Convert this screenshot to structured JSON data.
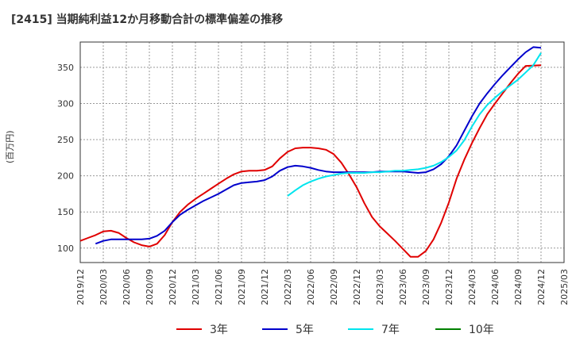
{
  "page_title": "[2415]  当期純利益12か月移動合計の標準偏差の推移",
  "y_axis_label": "(百万円)",
  "chart_data": {
    "type": "line",
    "title": "[2415]  当期純利益12か月移動合計の標準偏差の推移",
    "xlabel": "",
    "ylabel": "(百万円)",
    "x_ticks": [
      "2019/12",
      "2020/03",
      "2020/06",
      "2020/09",
      "2020/12",
      "2021/03",
      "2021/06",
      "2021/09",
      "2021/12",
      "2022/03",
      "2022/06",
      "2022/09",
      "2022/12",
      "2023/03",
      "2023/06",
      "2023/09",
      "2023/12",
      "2024/03",
      "2024/06",
      "2024/09",
      "2024/12",
      "2025/03"
    ],
    "y_ticks": [
      100,
      150,
      200,
      250,
      300,
      350
    ],
    "ylim": [
      80,
      385
    ],
    "grid": true,
    "legend_position": "bottom",
    "series": [
      {
        "name": "3年",
        "color": "#e00000",
        "x": [
          "2019/12",
          "2020/01",
          "2020/02",
          "2020/03",
          "2020/04",
          "2020/05",
          "2020/06",
          "2020/07",
          "2020/08",
          "2020/09",
          "2020/10",
          "2020/11",
          "2020/12",
          "2021/01",
          "2021/02",
          "2021/03",
          "2021/04",
          "2021/05",
          "2021/06",
          "2021/07",
          "2021/08",
          "2021/09",
          "2021/10",
          "2021/11",
          "2021/12",
          "2022/01",
          "2022/02",
          "2022/03",
          "2022/04",
          "2022/05",
          "2022/06",
          "2022/07",
          "2022/08",
          "2022/09",
          "2022/10",
          "2022/11",
          "2022/12",
          "2023/01",
          "2023/02",
          "2023/03",
          "2023/04",
          "2023/05",
          "2023/06",
          "2023/07",
          "2023/08",
          "2023/09",
          "2023/10",
          "2023/11",
          "2023/12",
          "2024/01",
          "2024/02",
          "2024/03",
          "2024/04",
          "2024/05",
          "2024/06",
          "2024/07",
          "2024/08",
          "2024/09",
          "2024/10",
          "2024/11",
          "2024/12"
        ],
        "values": [
          110,
          114,
          118,
          123,
          124,
          121,
          114,
          108,
          104,
          102,
          106,
          118,
          136,
          150,
          160,
          168,
          175,
          182,
          189,
          196,
          202,
          206,
          207,
          207,
          208,
          213,
          224,
          233,
          238,
          239,
          239,
          238,
          236,
          230,
          218,
          202,
          184,
          162,
          143,
          130,
          120,
          110,
          99,
          88,
          88,
          96,
          112,
          135,
          163,
          196,
          222,
          245,
          266,
          285,
          300,
          314,
          328,
          341,
          352,
          null,
          null
        ],
        "values_end": 353
      },
      {
        "name": "5年",
        "color": "#0000cc",
        "x": [
          "2020/02",
          "2020/03",
          "2020/04",
          "2020/05",
          "2020/06",
          "2020/07",
          "2020/08",
          "2020/09",
          "2020/10",
          "2020/11",
          "2020/12",
          "2021/01",
          "2021/02",
          "2021/03",
          "2021/04",
          "2021/05",
          "2021/06",
          "2021/07",
          "2021/08",
          "2021/09",
          "2021/10",
          "2021/11",
          "2021/12",
          "2022/01",
          "2022/02",
          "2022/03",
          "2022/04",
          "2022/05",
          "2022/06",
          "2022/07",
          "2022/08",
          "2022/09",
          "2022/10",
          "2022/11",
          "2022/12",
          "2023/01",
          "2023/02",
          "2023/03",
          "2023/04",
          "2023/05",
          "2023/06",
          "2023/07",
          "2023/08",
          "2023/09",
          "2023/10",
          "2023/11",
          "2023/12",
          "2024/01",
          "2024/02",
          "2024/03",
          "2024/04",
          "2024/05",
          "2024/06",
          "2024/07",
          "2024/08",
          "2024/09",
          "2024/10",
          "2024/11",
          "2024/12"
        ],
        "values": [
          106,
          110,
          112,
          112,
          112,
          112,
          112,
          113,
          117,
          124,
          136,
          146,
          153,
          159,
          165,
          170,
          175,
          181,
          187,
          190,
          191,
          192,
          194,
          199,
          207,
          212,
          214,
          213,
          211,
          208,
          206,
          205,
          205,
          205,
          205,
          205,
          205,
          206,
          206,
          206,
          206,
          205,
          204,
          205,
          209,
          216,
          227,
          242,
          262,
          282,
          300,
          314,
          327,
          339,
          350,
          361,
          371,
          378,
          null
        ],
        "values_end": 377
      },
      {
        "name": "7年",
        "color": "#00e5ee",
        "x": [
          "2022/03",
          "2022/04",
          "2022/05",
          "2022/06",
          "2022/07",
          "2022/08",
          "2022/09",
          "2022/10",
          "2022/11",
          "2022/12",
          "2023/01",
          "2023/02",
          "2023/03",
          "2023/04",
          "2023/05",
          "2023/06",
          "2023/07",
          "2023/08",
          "2023/09",
          "2023/10",
          "2023/11",
          "2023/12",
          "2024/01",
          "2024/02",
          "2024/03",
          "2024/04",
          "2024/05",
          "2024/06",
          "2024/07",
          "2024/08",
          "2024/09",
          "2024/10",
          "2024/11",
          "2024/12"
        ],
        "values": [
          172,
          180,
          187,
          192,
          196,
          199,
          201,
          203,
          204,
          204,
          204,
          205,
          205,
          206,
          207,
          207,
          208,
          209,
          211,
          214,
          219,
          226,
          235,
          249,
          268,
          285,
          298,
          308,
          317,
          325,
          333,
          343,
          353,
          370
        ]
      },
      {
        "name": "10年",
        "color": "#008000",
        "x": [],
        "values": []
      }
    ]
  }
}
